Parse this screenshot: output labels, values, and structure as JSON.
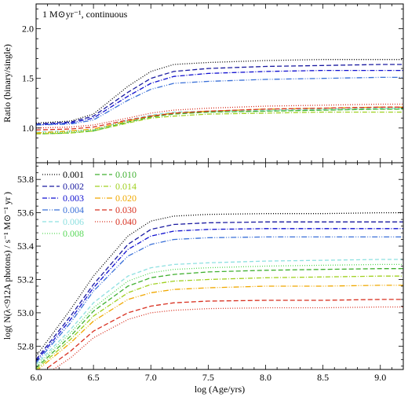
{
  "figure": {
    "xlabel": "log (Age/yrs)"
  },
  "chart_data": [
    {
      "type": "line",
      "panel": "top",
      "annotation": "1 M⊙yr⁻¹, continuous",
      "ylabel": "Ratio (binary/single)",
      "xlim": [
        6.0,
        9.2
      ],
      "ylim": [
        0.65,
        2.25
      ],
      "xticks": [
        6.0,
        6.5,
        7.0,
        7.5,
        8.0,
        8.5,
        9.0
      ],
      "xtick_labels": [
        "6.0",
        "6.5",
        "7.0",
        "7.5",
        "8.0",
        "8.5",
        "9.0"
      ],
      "yticks": [
        1.0,
        1.5,
        2.0
      ],
      "ytick_labels": [
        "1.0",
        "1.5",
        "2.0"
      ],
      "x": [
        6.0,
        6.3,
        6.5,
        6.8,
        7.0,
        7.2,
        7.5,
        8.0,
        8.5,
        9.0,
        9.2
      ],
      "series": [
        {
          "name": "0.001",
          "color": "#000000",
          "dash": "1,2",
          "values": [
            1.05,
            1.07,
            1.14,
            1.42,
            1.57,
            1.64,
            1.66,
            1.68,
            1.69,
            1.69,
            1.69
          ]
        },
        {
          "name": "0.002",
          "color": "#1a1aa0",
          "dash": "6,3",
          "values": [
            1.04,
            1.06,
            1.12,
            1.36,
            1.5,
            1.57,
            1.6,
            1.62,
            1.63,
            1.64,
            1.64
          ]
        },
        {
          "name": "0.003",
          "color": "#1010d0",
          "dash": "6,2,1,2",
          "values": [
            1.03,
            1.05,
            1.1,
            1.32,
            1.45,
            1.52,
            1.55,
            1.57,
            1.58,
            1.58,
            1.58
          ]
        },
        {
          "name": "0.004",
          "color": "#3a70d8",
          "dash": "7,2,1,2,1,2",
          "values": [
            1.03,
            1.04,
            1.08,
            1.28,
            1.39,
            1.45,
            1.47,
            1.49,
            1.5,
            1.51,
            1.51
          ]
        },
        {
          "name": "0.006",
          "color": "#8ee0e0",
          "dash": "5,3",
          "values": [
            0.96,
            0.97,
            0.98,
            1.08,
            1.13,
            1.16,
            1.17,
            1.18,
            1.19,
            1.2,
            1.2
          ]
        },
        {
          "name": "0.008",
          "color": "#58d858",
          "dash": "1,2",
          "values": [
            0.95,
            0.96,
            0.98,
            1.07,
            1.12,
            1.15,
            1.16,
            1.17,
            1.18,
            1.19,
            1.19
          ]
        },
        {
          "name": "0.010",
          "color": "#40b030",
          "dash": "6,3",
          "values": [
            0.94,
            0.95,
            0.97,
            1.06,
            1.11,
            1.14,
            1.16,
            1.17,
            1.18,
            1.19,
            1.19
          ]
        },
        {
          "name": "0.014",
          "color": "#a0d020",
          "dash": "6,2,1,2",
          "values": [
            0.94,
            0.95,
            0.97,
            1.05,
            1.1,
            1.12,
            1.14,
            1.15,
            1.16,
            1.16,
            1.16
          ]
        },
        {
          "name": "0.020",
          "color": "#f0a800",
          "dash": "7,2,1,2,1,2",
          "values": [
            0.95,
            0.97,
            0.99,
            1.07,
            1.12,
            1.15,
            1.17,
            1.19,
            1.2,
            1.21,
            1.21
          ]
        },
        {
          "name": "0.030",
          "color": "#d83020",
          "dash": "6,3",
          "values": [
            0.98,
            0.99,
            1.01,
            1.08,
            1.12,
            1.15,
            1.17,
            1.19,
            1.2,
            1.21,
            1.21
          ]
        },
        {
          "name": "0.040",
          "color": "#d83020",
          "dash": "1,2",
          "values": [
            1.0,
            1.01,
            1.03,
            1.1,
            1.15,
            1.18,
            1.2,
            1.22,
            1.23,
            1.24,
            1.24
          ]
        }
      ]
    },
    {
      "type": "line",
      "panel": "bottom",
      "ylabel": "log( N(λ<912A photons) / s⁻¹ M⊙⁻¹ yr )",
      "xlim": [
        6.0,
        9.2
      ],
      "ylim": [
        52.66,
        53.9
      ],
      "xticks": [
        6.0,
        6.5,
        7.0,
        7.5,
        8.0,
        8.5,
        9.0
      ],
      "xtick_labels": [
        "6.0",
        "6.5",
        "7.0",
        "7.5",
        "8.0",
        "8.5",
        "9.0"
      ],
      "yticks": [
        52.8,
        53.0,
        53.2,
        53.4,
        53.6,
        53.8
      ],
      "ytick_labels": [
        "52.8",
        "53.0",
        "53.2",
        "53.4",
        "53.6",
        "53.8"
      ],
      "legend_placement": "top-left",
      "x": [
        6.0,
        6.3,
        6.5,
        6.8,
        7.0,
        7.2,
        7.5,
        8.0,
        8.5,
        9.0,
        9.2
      ],
      "series": [
        {
          "name": "0.001",
          "color": "#000000",
          "dash": "1,2",
          "values": [
            52.74,
            53.02,
            53.22,
            53.46,
            53.55,
            53.58,
            53.59,
            53.595,
            53.595,
            53.6,
            53.6
          ]
        },
        {
          "name": "0.002",
          "color": "#1a1aa0",
          "dash": "6,3",
          "values": [
            52.72,
            52.98,
            53.17,
            53.41,
            53.5,
            53.53,
            53.54,
            53.545,
            53.545,
            53.545,
            53.545
          ]
        },
        {
          "name": "0.003",
          "color": "#1010d0",
          "dash": "6,2,1,2",
          "values": [
            52.71,
            52.96,
            53.15,
            53.38,
            53.46,
            53.49,
            53.5,
            53.505,
            53.505,
            53.505,
            53.505
          ]
        },
        {
          "name": "0.004",
          "color": "#3a70d8",
          "dash": "7,2,1,2,1,2",
          "values": [
            52.7,
            52.94,
            53.13,
            53.34,
            53.41,
            53.44,
            53.45,
            53.455,
            53.455,
            53.455,
            53.455
          ]
        },
        {
          "name": "0.006",
          "color": "#8ee0e0",
          "dash": "5,3",
          "values": [
            52.69,
            52.9,
            53.06,
            53.22,
            53.27,
            53.29,
            53.3,
            53.31,
            53.315,
            53.32,
            53.32
          ]
        },
        {
          "name": "0.008",
          "color": "#58d858",
          "dash": "1,2",
          "values": [
            52.68,
            52.88,
            53.03,
            53.19,
            53.24,
            53.26,
            53.27,
            53.28,
            53.285,
            53.29,
            53.29
          ]
        },
        {
          "name": "0.010",
          "color": "#40b030",
          "dash": "6,3",
          "values": [
            52.67,
            52.86,
            53.01,
            53.16,
            53.21,
            53.23,
            53.245,
            53.255,
            53.26,
            53.265,
            53.265
          ]
        },
        {
          "name": "0.014",
          "color": "#a0d020",
          "dash": "6,2,1,2",
          "values": [
            52.66,
            52.84,
            52.98,
            53.12,
            53.17,
            53.19,
            53.2,
            53.21,
            53.215,
            53.22,
            53.22
          ]
        },
        {
          "name": "0.020",
          "color": "#f0a800",
          "dash": "7,2,1,2,1,2",
          "values": [
            52.65,
            52.82,
            52.95,
            53.08,
            53.12,
            53.14,
            53.15,
            53.16,
            53.16,
            53.165,
            53.165
          ]
        },
        {
          "name": "0.030",
          "color": "#d83020",
          "dash": "6,3",
          "values": [
            52.62,
            52.77,
            52.89,
            53.0,
            53.04,
            53.06,
            53.07,
            53.075,
            53.075,
            53.08,
            53.08
          ]
        },
        {
          "name": "0.040",
          "color": "#d83020",
          "dash": "1,2",
          "values": [
            52.59,
            52.73,
            52.85,
            52.96,
            53.0,
            53.015,
            53.025,
            53.03,
            53.03,
            53.035,
            53.035
          ]
        }
      ]
    }
  ]
}
